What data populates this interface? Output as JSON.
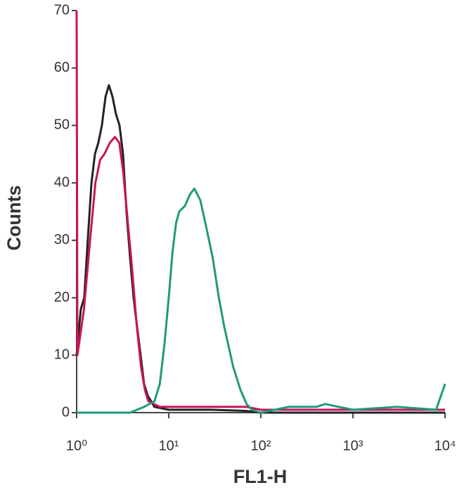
{
  "chart_data": {
    "type": "line",
    "xlabel": "FL1-H",
    "ylabel": "Counts",
    "xscale": "log",
    "xlim": [
      1,
      10000
    ],
    "xticks": [
      {
        "value": 1,
        "label": "10⁰"
      },
      {
        "value": 10,
        "label": "10¹"
      },
      {
        "value": 100,
        "label": "10²"
      },
      {
        "value": 1000,
        "label": "10³"
      },
      {
        "value": 10000,
        "label": "10⁴"
      }
    ],
    "ylim": [
      0,
      70
    ],
    "yticks": [
      0,
      10,
      20,
      30,
      40,
      50,
      60,
      70
    ],
    "grid": false,
    "series": [
      {
        "color": "#222222",
        "x": [
          1,
          1.11,
          1.21,
          1.32,
          1.45,
          1.58,
          1.72,
          1.88,
          2.06,
          2.24,
          2.45,
          2.67,
          2.92,
          3.19,
          3.48,
          3.8,
          4.15,
          4.53,
          4.95,
          5.4,
          5.9,
          7,
          10,
          28.7,
          69,
          98,
          10000
        ],
        "values": [
          10,
          18,
          20,
          30,
          40,
          45,
          47,
          50,
          55,
          57,
          55,
          52,
          50,
          45,
          35,
          27,
          20,
          15,
          10,
          5,
          3,
          1,
          0.5,
          0.5,
          0.3,
          0,
          0
        ]
      },
      {
        "color": "#c8145a",
        "x": [
          1,
          1.02,
          1.2,
          1.4,
          1.6,
          1.8,
          2,
          2.3,
          2.6,
          2.9,
          3.2,
          3.6,
          4,
          4.5,
          5,
          5.5,
          6,
          8,
          15,
          40,
          70,
          100,
          1000,
          10000
        ],
        "values": [
          70,
          10,
          18,
          30,
          40,
          44,
          45,
          47,
          48,
          47,
          42,
          33,
          25,
          15,
          8,
          4,
          2,
          1,
          1,
          1,
          1,
          0.5,
          0.5,
          0.5
        ]
      },
      {
        "color": "#1f9a7a",
        "x": [
          1,
          3.8,
          5.4,
          7,
          8,
          9,
          10,
          11,
          12,
          13,
          15,
          17,
          19,
          22,
          25,
          30,
          35,
          40,
          50,
          60,
          70,
          80,
          100,
          200,
          400,
          500,
          700,
          1000,
          3000,
          8000,
          10000
        ],
        "values": [
          0,
          0,
          1,
          2,
          5,
          12,
          20,
          28,
          33,
          35,
          36,
          38,
          39,
          37,
          33,
          27,
          20,
          15,
          8,
          4,
          1.5,
          0.5,
          0,
          1,
          1,
          1.5,
          1,
          0.5,
          1,
          0.5,
          5
        ]
      }
    ]
  }
}
